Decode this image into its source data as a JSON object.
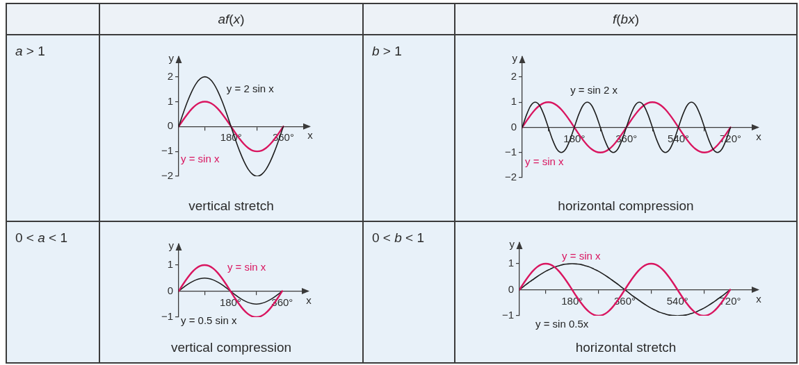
{
  "chart_data": [
    {
      "type": "line",
      "title": "af(x)",
      "xlabel": "x",
      "ylabel": "y",
      "x": [
        0,
        15,
        30,
        45,
        60,
        75,
        90,
        105,
        120,
        135,
        150,
        165,
        180,
        195,
        210,
        225,
        240,
        255,
        270,
        285,
        300,
        315,
        330,
        345,
        360
      ],
      "series": [
        {
          "name": "y = 2 sin x",
          "color": "#1e1e1e",
          "values": [
            0,
            0.52,
            1,
            1.41,
            1.73,
            1.93,
            2,
            1.93,
            1.73,
            1.41,
            1,
            0.52,
            0,
            -0.52,
            -1,
            -1.41,
            -1.73,
            -1.93,
            -2,
            -1.93,
            -1.73,
            -1.41,
            -1,
            -0.52,
            0
          ]
        },
        {
          "name": "y = sin x",
          "color": "#d9155f",
          "values": [
            0,
            0.26,
            0.5,
            0.71,
            0.87,
            0.97,
            1,
            0.97,
            0.87,
            0.71,
            0.5,
            0.26,
            0,
            -0.26,
            -0.5,
            -0.71,
            -0.87,
            -0.97,
            -1,
            -0.97,
            -0.87,
            -0.71,
            -0.5,
            -0.26,
            0
          ]
        }
      ],
      "xlim": [
        0,
        450
      ],
      "ylim": [
        -2,
        2.8
      ],
      "xticks": [
        {
          "value": 90,
          "label": null
        },
        {
          "value": 180,
          "label": "180°"
        },
        {
          "value": 270,
          "label": null
        },
        {
          "value": 360,
          "label": "360°"
        }
      ],
      "yticks": [
        -2,
        -1,
        0,
        1,
        2
      ],
      "annotations": [
        "a > 1",
        "vertical stretch"
      ]
    },
    {
      "type": "line",
      "title": "f(bx)",
      "xlabel": "x",
      "ylabel": "y",
      "x": [
        0,
        15,
        30,
        45,
        60,
        75,
        90,
        105,
        120,
        135,
        150,
        165,
        180,
        195,
        210,
        225,
        240,
        255,
        270,
        285,
        300,
        315,
        330,
        345,
        360,
        375,
        390,
        405,
        420,
        435,
        450,
        465,
        480,
        495,
        510,
        525,
        540,
        555,
        570,
        585,
        600,
        615,
        630,
        645,
        660,
        675,
        690,
        705,
        720
      ],
      "series": [
        {
          "name": "y = sin 2 x",
          "color": "#1e1e1e",
          "values": [
            0,
            0.5,
            0.87,
            1,
            0.87,
            0.5,
            0,
            -0.5,
            -0.87,
            -1,
            -0.87,
            -0.5,
            0,
            0.5,
            0.87,
            1,
            0.87,
            0.5,
            0,
            -0.5,
            -0.87,
            -1,
            -0.87,
            -0.5,
            0,
            0.5,
            0.87,
            1,
            0.87,
            0.5,
            0,
            -0.5,
            -0.87,
            -1,
            -0.87,
            -0.5,
            0,
            0.5,
            0.87,
            1,
            0.87,
            0.5,
            0,
            -0.5,
            -0.87,
            -1,
            -0.87,
            -0.5,
            0
          ]
        },
        {
          "name": "y = sin x",
          "color": "#d9155f",
          "values": [
            0,
            0.26,
            0.5,
            0.71,
            0.87,
            0.97,
            1,
            0.97,
            0.87,
            0.71,
            0.5,
            0.26,
            0,
            -0.26,
            -0.5,
            -0.71,
            -0.87,
            -0.97,
            -1,
            -0.97,
            -0.87,
            -0.71,
            -0.5,
            -0.26,
            0,
            0.26,
            0.5,
            0.71,
            0.87,
            0.97,
            1,
            0.97,
            0.87,
            0.71,
            0.5,
            0.26,
            0,
            -0.26,
            -0.5,
            -0.71,
            -0.87,
            -0.97,
            -1,
            -0.97,
            -0.87,
            -0.71,
            -0.5,
            -0.26,
            0
          ]
        }
      ],
      "xlim": [
        0,
        815
      ],
      "ylim": [
        -2,
        2.8
      ],
      "xticks": [
        {
          "value": 90,
          "label": null
        },
        {
          "value": 180,
          "label": "180°"
        },
        {
          "value": 270,
          "label": null
        },
        {
          "value": 360,
          "label": "360°"
        },
        {
          "value": 450,
          "label": null
        },
        {
          "value": 540,
          "label": "540°"
        },
        {
          "value": 630,
          "label": null
        },
        {
          "value": 720,
          "label": "720°"
        }
      ],
      "yticks": [
        -2,
        -1,
        0,
        1,
        2
      ],
      "annotations": [
        "b > 1",
        "horizontal compression"
      ]
    },
    {
      "type": "line",
      "xlabel": "x",
      "ylabel": "y",
      "x": [
        0,
        15,
        30,
        45,
        60,
        75,
        90,
        105,
        120,
        135,
        150,
        165,
        180,
        195,
        210,
        225,
        240,
        255,
        270,
        285,
        300,
        315,
        330,
        345,
        360
      ],
      "series": [
        {
          "name": "y = sin x",
          "color": "#d9155f",
          "values": [
            0,
            0.26,
            0.5,
            0.71,
            0.87,
            0.97,
            1,
            0.97,
            0.87,
            0.71,
            0.5,
            0.26,
            0,
            -0.26,
            -0.5,
            -0.71,
            -0.87,
            -0.97,
            -1,
            -0.97,
            -0.87,
            -0.71,
            -0.5,
            -0.26,
            0
          ]
        },
        {
          "name": "y = 0.5 sin x",
          "color": "#1e1e1e",
          "values": [
            0,
            0.13,
            0.25,
            0.35,
            0.43,
            0.48,
            0.5,
            0.48,
            0.43,
            0.35,
            0.25,
            0.13,
            0,
            -0.13,
            -0.25,
            -0.35,
            -0.43,
            -0.48,
            -0.5,
            -0.48,
            -0.43,
            -0.35,
            -0.25,
            -0.13,
            0
          ]
        }
      ],
      "xlim": [
        0,
        450
      ],
      "ylim": [
        -1,
        1.8
      ],
      "xticks": [
        {
          "value": 90,
          "label": null
        },
        {
          "value": 180,
          "label": "180°"
        },
        {
          "value": 270,
          "label": null
        },
        {
          "value": 360,
          "label": "360°"
        }
      ],
      "yticks": [
        -1,
        0,
        1
      ],
      "annotations": [
        "0 < a < 1",
        "vertical compression"
      ]
    },
    {
      "type": "line",
      "xlabel": "x",
      "ylabel": "y",
      "x": [
        0,
        15,
        30,
        45,
        60,
        75,
        90,
        105,
        120,
        135,
        150,
        165,
        180,
        195,
        210,
        225,
        240,
        255,
        270,
        285,
        300,
        315,
        330,
        345,
        360,
        375,
        390,
        405,
        420,
        435,
        450,
        465,
        480,
        495,
        510,
        525,
        540,
        555,
        570,
        585,
        600,
        615,
        630,
        645,
        660,
        675,
        690,
        705,
        720
      ],
      "series": [
        {
          "name": "y = sin x",
          "color": "#d9155f",
          "values": [
            0,
            0.26,
            0.5,
            0.71,
            0.87,
            0.97,
            1,
            0.97,
            0.87,
            0.71,
            0.5,
            0.26,
            0,
            -0.26,
            -0.5,
            -0.71,
            -0.87,
            -0.97,
            -1,
            -0.97,
            -0.87,
            -0.71,
            -0.5,
            -0.26,
            0,
            0.26,
            0.5,
            0.71,
            0.87,
            0.97,
            1,
            0.97,
            0.87,
            0.71,
            0.5,
            0.26,
            0,
            -0.26,
            -0.5,
            -0.71,
            -0.87,
            -0.97,
            -1,
            -0.97,
            -0.87,
            -0.71,
            -0.5,
            -0.26,
            0
          ]
        },
        {
          "name": "y = sin 0.5x",
          "color": "#1e1e1e",
          "values": [
            0,
            0.13,
            0.26,
            0.38,
            0.5,
            0.61,
            0.71,
            0.79,
            0.87,
            0.92,
            0.97,
            0.99,
            1,
            0.99,
            0.97,
            0.92,
            0.87,
            0.79,
            0.71,
            0.61,
            0.5,
            0.38,
            0.26,
            0.13,
            0,
            -0.13,
            -0.26,
            -0.38,
            -0.5,
            -0.61,
            -0.71,
            -0.79,
            -0.87,
            -0.92,
            -0.97,
            -0.99,
            -1,
            -0.99,
            -0.97,
            -0.92,
            -0.87,
            -0.79,
            -0.71,
            -0.61,
            -0.5,
            -0.38,
            -0.26,
            -0.13,
            0
          ]
        }
      ],
      "xlim": [
        0,
        815
      ],
      "ylim": [
        -1,
        1.8
      ],
      "xticks": [
        {
          "value": 90,
          "label": null
        },
        {
          "value": 180,
          "label": "180°"
        },
        {
          "value": 270,
          "label": null
        },
        {
          "value": 360,
          "label": "360°"
        },
        {
          "value": 450,
          "label": null
        },
        {
          "value": 540,
          "label": "540°"
        },
        {
          "value": 630,
          "label": null
        },
        {
          "value": 720,
          "label": "720°"
        }
      ],
      "yticks": [
        -1,
        0,
        1
      ],
      "annotations": [
        "0 < b < 1",
        "horizontal stretch"
      ]
    }
  ]
}
